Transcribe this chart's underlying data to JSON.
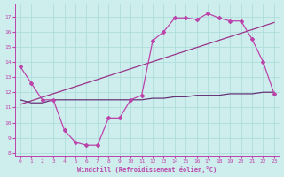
{
  "xlabel": "Windchill (Refroidissement éolien,°C)",
  "bg_color": "#ceeeed",
  "grid_color": "#aedddc",
  "line_color": "#bb44aa",
  "flat_line_color": "#663377",
  "trend_line_color": "#993388",
  "xlim": [
    -0.5,
    23.5
  ],
  "ylim": [
    7.8,
    17.8
  ],
  "yticks": [
    8,
    9,
    10,
    11,
    12,
    13,
    14,
    15,
    16,
    17
  ],
  "xticks": [
    0,
    1,
    2,
    3,
    4,
    5,
    6,
    7,
    8,
    9,
    10,
    11,
    12,
    13,
    14,
    15,
    16,
    17,
    18,
    19,
    20,
    21,
    22,
    23
  ],
  "curve_x": [
    0,
    1,
    2,
    3,
    4,
    5,
    6,
    7,
    8,
    9,
    10,
    11,
    12,
    13,
    14,
    15,
    16,
    17,
    18,
    19,
    20,
    21,
    22,
    23
  ],
  "curve_y": [
    13.7,
    12.6,
    11.5,
    11.5,
    9.5,
    8.7,
    8.5,
    8.5,
    10.3,
    10.3,
    11.5,
    11.8,
    15.4,
    16.0,
    16.9,
    16.9,
    16.8,
    17.2,
    16.9,
    16.7,
    16.7,
    15.5,
    14.0,
    11.9
  ],
  "flat_x": [
    0,
    1,
    2,
    3,
    4,
    5,
    6,
    7,
    8,
    9,
    10,
    11,
    12,
    13,
    14,
    15,
    16,
    17,
    18,
    19,
    20,
    21,
    22,
    23
  ],
  "flat_y": [
    11.5,
    11.3,
    11.3,
    11.5,
    11.5,
    11.5,
    11.5,
    11.5,
    11.5,
    11.5,
    11.5,
    11.5,
    11.6,
    11.6,
    11.7,
    11.7,
    11.8,
    11.8,
    11.8,
    11.9,
    11.9,
    11.9,
    12.0,
    12.0
  ],
  "trend_x": [
    0,
    23
  ],
  "trend_y": [
    11.2,
    16.6
  ]
}
